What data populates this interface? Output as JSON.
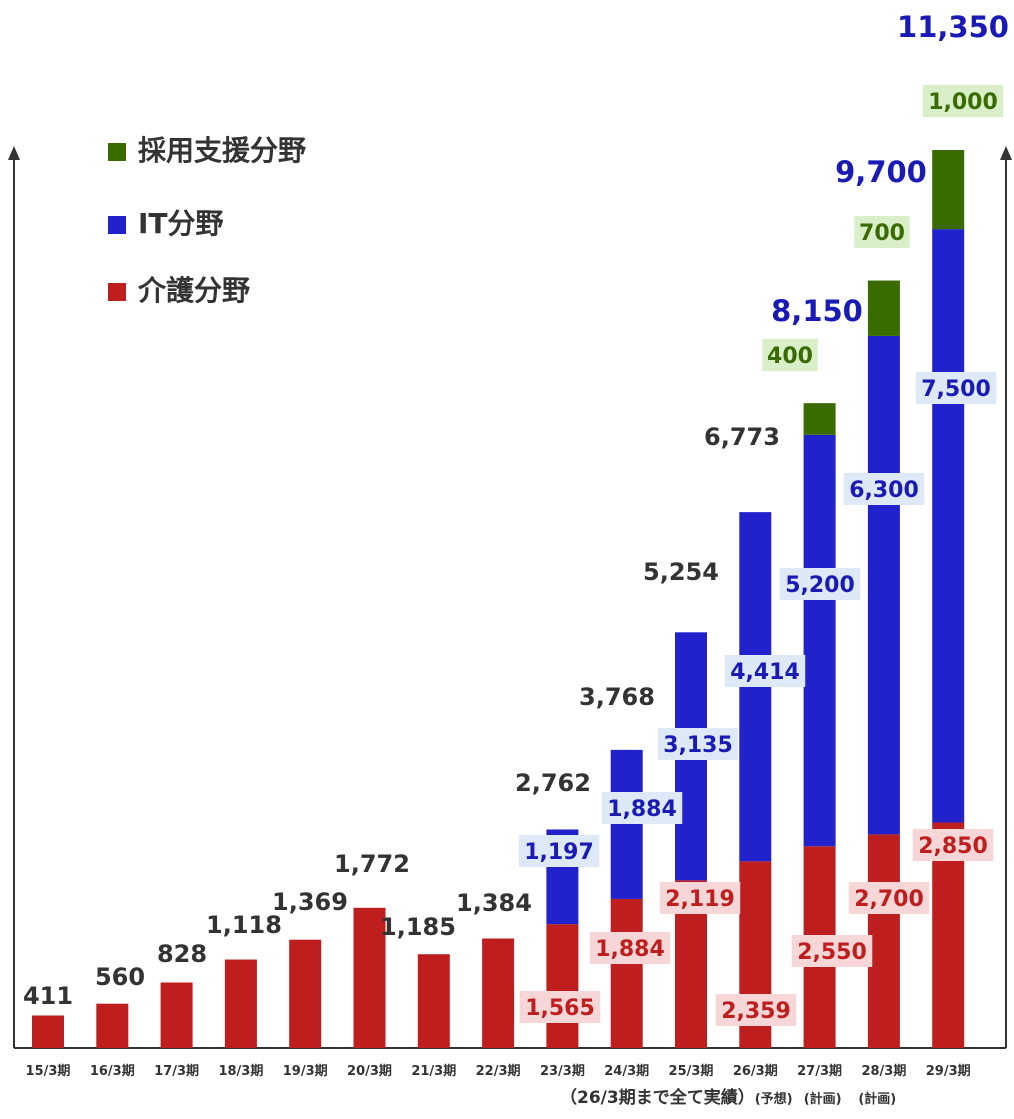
{
  "chart_data": {
    "type": "bar",
    "stacked": true,
    "categories": [
      "15/3期",
      "16/3期",
      "17/3期",
      "18/3期",
      "19/3期",
      "20/3期",
      "21/3期",
      "22/3期",
      "23/3期",
      "24/3期",
      "25/3期",
      "26/3期",
      "27/3期",
      "28/3期",
      "29/3期"
    ],
    "series": [
      {
        "name": "介護分野",
        "color": "#be1e1e",
        "values": [
          411,
          560,
          828,
          1118,
          1369,
          1772,
          1185,
          1384,
          1565,
          1884,
          2119,
          2359,
          2550,
          2700,
          2850
        ],
        "value_labels": [
          null,
          null,
          null,
          null,
          null,
          null,
          null,
          null,
          "1,565",
          "1,884",
          "2,119",
          "2,359",
          "2,550",
          "2,700",
          "2,850"
        ]
      },
      {
        "name": "IT分野",
        "color": "#2222cc",
        "values": [
          0,
          0,
          0,
          0,
          0,
          0,
          0,
          0,
          1197,
          1884,
          3135,
          4414,
          5200,
          6300,
          7500
        ],
        "value_labels": [
          null,
          null,
          null,
          null,
          null,
          null,
          null,
          null,
          "1,197",
          "1,884",
          "3,135",
          "4,414",
          "5,200",
          "6,300",
          "7,500"
        ]
      },
      {
        "name": "採用支援分野",
        "color": "#3a6b00",
        "values": [
          0,
          0,
          0,
          0,
          0,
          0,
          0,
          0,
          0,
          0,
          0,
          0,
          400,
          700,
          1000
        ],
        "value_labels": [
          null,
          null,
          null,
          null,
          null,
          null,
          null,
          null,
          null,
          null,
          null,
          null,
          "400",
          "700",
          "1,000"
        ]
      }
    ],
    "totals": [
      411,
      560,
      828,
      1118,
      1369,
      1772,
      1185,
      1384,
      2762,
      3768,
      5254,
      6773,
      8150,
      9700,
      11350
    ],
    "total_labels": [
      "411",
      "560",
      "828",
      "1,118",
      "1,369",
      "1,772",
      "1,185",
      "1,384",
      "2,762",
      "3,768",
      "5,254",
      "6,773",
      "8,150",
      "9,700",
      "11,350"
    ],
    "total_label_colors": [
      "#333333",
      "#333333",
      "#333333",
      "#333333",
      "#333333",
      "#333333",
      "#333333",
      "#333333",
      "#333333",
      "#333333",
      "#333333",
      "#333333",
      "#1a1ab4",
      "#1a1ab4",
      "#1a1ab4"
    ],
    "ylim": [
      0,
      11350
    ],
    "legend_position": "top-left",
    "legend": [
      {
        "label": "採用支援分野",
        "color": "#3a6b00"
      },
      {
        "label": "IT分野",
        "color": "#2222cc"
      },
      {
        "label": "介護分野",
        "color": "#be1e1e"
      }
    ],
    "footnote": {
      "main": "（26/3期まで全て実績）",
      "notes": [
        "(予想)",
        "(計画)",
        "(計画)"
      ]
    }
  }
}
